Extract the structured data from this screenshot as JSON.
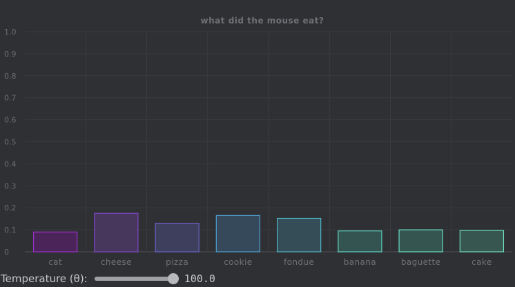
{
  "chart_data": {
    "type": "bar",
    "title": "what did the mouse eat?",
    "categories": [
      "cat",
      "cheese",
      "pizza",
      "cookie",
      "fondue",
      "banana",
      "baguette",
      "cake"
    ],
    "values": [
      0.09,
      0.175,
      0.13,
      0.165,
      0.152,
      0.095,
      0.1,
      0.097
    ],
    "ylim": [
      0,
      1.0
    ],
    "yticks": [
      "0",
      "0.1",
      "0.2",
      "0.3",
      "0.4",
      "0.5",
      "0.6",
      "0.7",
      "0.8",
      "0.9",
      "1.0"
    ],
    "grid": true,
    "colors": [
      {
        "fill": "#4b2559",
        "stroke": "#9b2fc9"
      },
      {
        "fill": "#47375c",
        "stroke": "#8046c9"
      },
      {
        "fill": "#3e3f5d",
        "stroke": "#6a62c7"
      },
      {
        "fill": "#35495a",
        "stroke": "#4d9fcf"
      },
      {
        "fill": "#344d56",
        "stroke": "#4fb4c9"
      },
      {
        "fill": "#335451",
        "stroke": "#5fd3c4"
      },
      {
        "fill": "#355550",
        "stroke": "#67dcc1"
      },
      {
        "fill": "#37564f",
        "stroke": "#6ddcbd"
      }
    ]
  },
  "controls": {
    "temperature_label": "Temperature (θ):",
    "temperature_value": "100.0",
    "temperature_fraction": 1.0
  }
}
